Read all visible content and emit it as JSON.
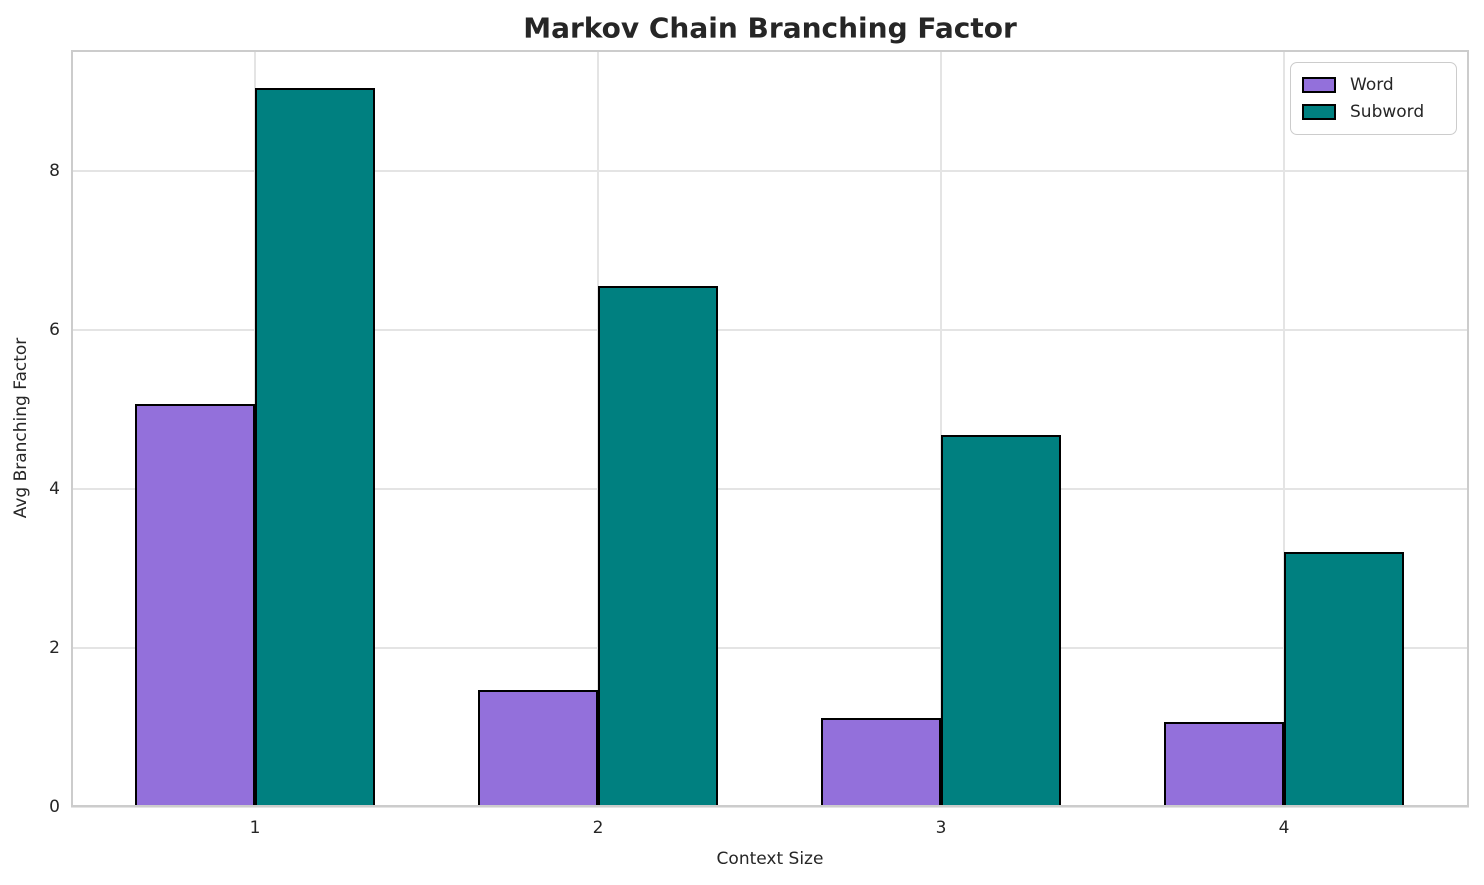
{
  "chart_data": {
    "type": "bar",
    "title": "Markov Chain Branching Factor",
    "xlabel": "Context Size",
    "ylabel": "Avg Branching Factor",
    "categories": [
      "1",
      "2",
      "3",
      "4"
    ],
    "series": [
      {
        "name": "Word",
        "color": "#9370DB",
        "values": [
          5.07,
          1.47,
          1.12,
          1.07
        ]
      },
      {
        "name": "Subword",
        "color": "#008080",
        "values": [
          9.04,
          6.55,
          4.68,
          3.21
        ]
      }
    ],
    "ylim": [
      0,
      9.52
    ],
    "yticks": [
      0,
      2,
      4,
      6,
      8
    ],
    "grid": true,
    "legend_position": "upper right",
    "bar_edge_color": "#000000",
    "grid_color": "#e4e4e4",
    "spine_color": "#cccccc",
    "text_color": "#262626"
  }
}
